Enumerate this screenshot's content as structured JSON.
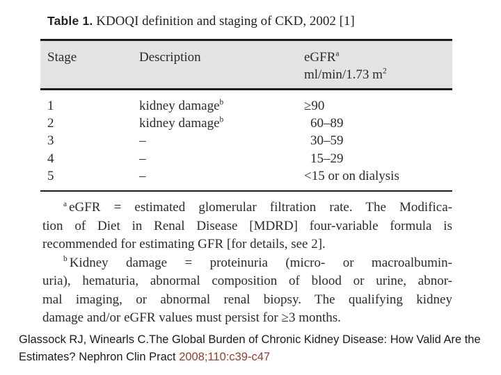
{
  "figure": {
    "title_bold": "Table 1.",
    "title_rest": " KDOQI definition and staging of CKD, 2002 [1]",
    "header": {
      "stage": "Stage",
      "description": "Description",
      "egfr": "eGFR",
      "egfr_sup": "a",
      "egfr_units": "ml/min/1.73 m",
      "egfr_units_sup": "2"
    },
    "rows": [
      {
        "stage": "1",
        "description": "kidney damage",
        "desc_sup": "b",
        "egfr": "≥90"
      },
      {
        "stage": "2",
        "description": "kidney damage",
        "desc_sup": "b",
        "egfr": "60–89"
      },
      {
        "stage": "3",
        "description": "–",
        "desc_sup": "",
        "egfr": "30–59"
      },
      {
        "stage": "4",
        "description": "–",
        "desc_sup": "",
        "egfr": "15–29"
      },
      {
        "stage": "5",
        "description": "–",
        "desc_sup": "",
        "egfr": "<15 or on dialysis"
      }
    ],
    "footnote_a": {
      "sup": "a",
      "line1": "eGFR = estimated glomerular filtration rate. The Modifica-",
      "line2": "tion of Diet in Renal Disease [MDRD] four-variable formula is",
      "line3": "recommended for estimating GFR [for details, see 2]."
    },
    "footnote_b": {
      "sup": "b",
      "line1": "Kidney damage = proteinuria (micro- or macroalbumin-",
      "line2": "uria), hematuria, abnormal composition of blood or urine, abnor-",
      "line3": "mal imaging, or abnormal renal biopsy. The qualifying kidney",
      "line4": "damage and/or eGFR values must persist for ≥3 months."
    }
  },
  "citation": {
    "line1": "Glassock RJ, Winearls C.The Global Burden of Chronic Kidney Disease: How Valid Are the",
    "line2_prefix": "Estimates? Nephron Clin Pract ",
    "line2_ref": "2008;110:c39-c47"
  },
  "colors": {
    "header_band": "#e3e3e3",
    "rule": "#1d1d1d",
    "scan_text": "#2b2b2b",
    "citation_text": "#1a1a1a",
    "citation_ref": "#8b4038"
  }
}
